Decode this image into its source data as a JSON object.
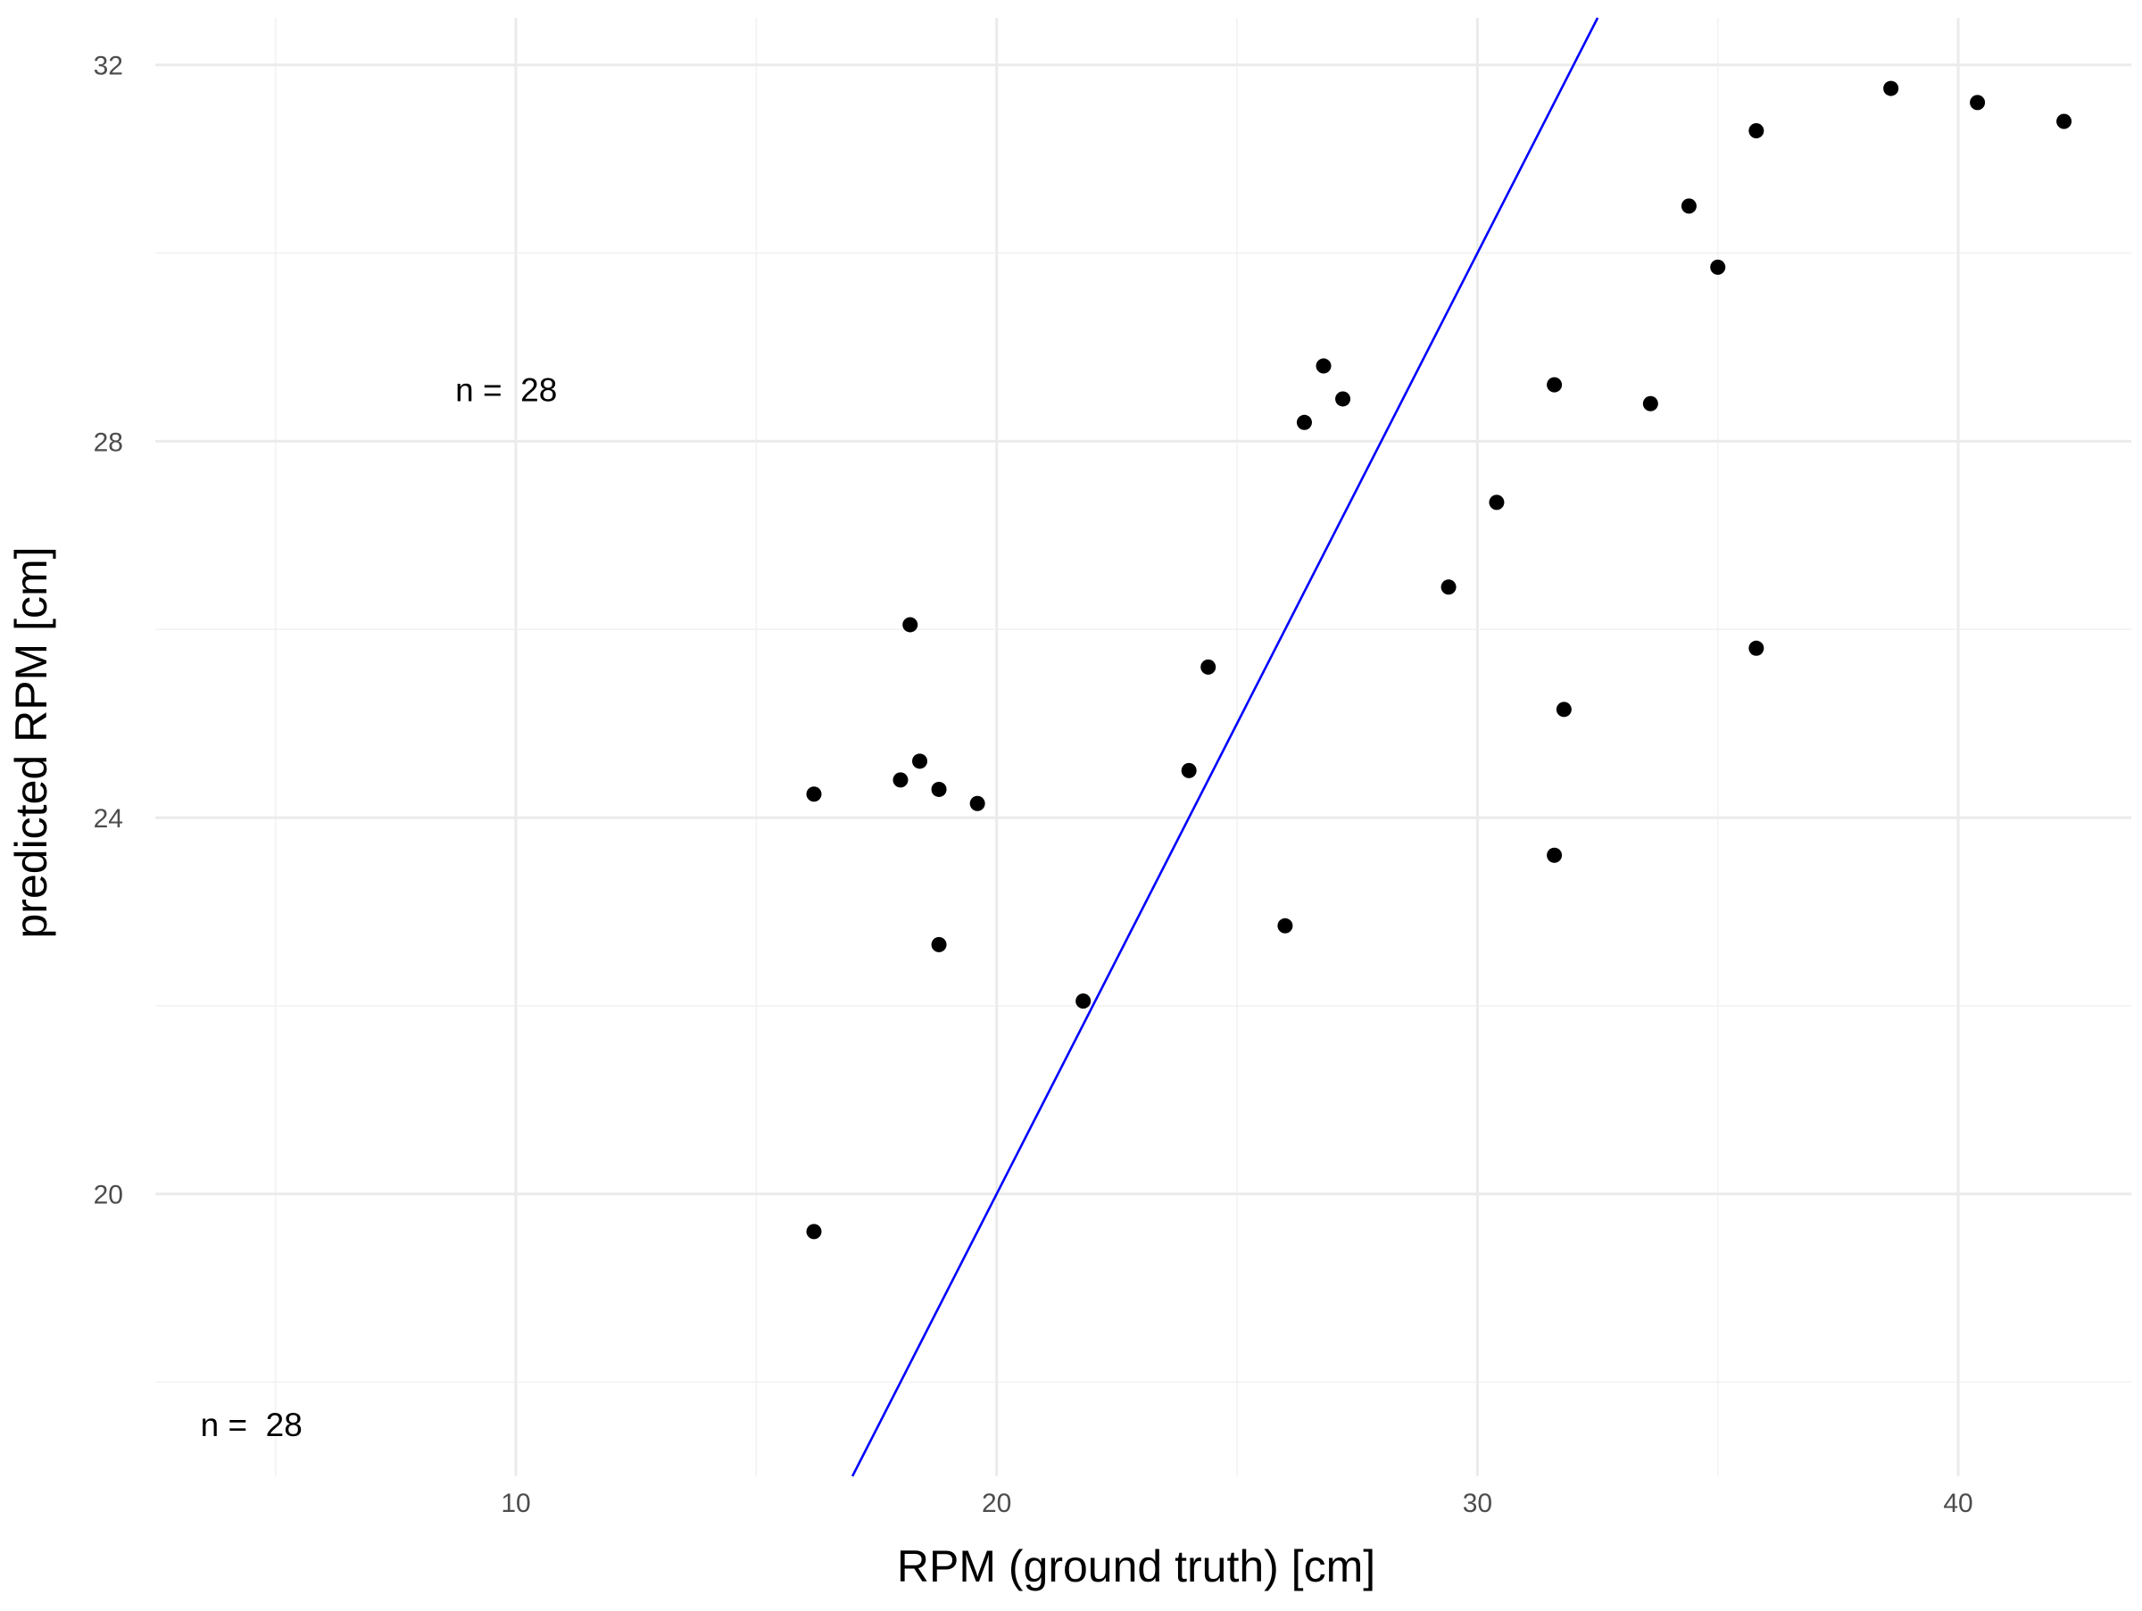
{
  "chart_data": {
    "type": "scatter",
    "title": "",
    "xlabel": "RPM (ground truth) [cm]",
    "ylabel": "predicted RPM [cm]",
    "xlim": [
      2.5,
      43.6
    ],
    "ylim": [
      17.0,
      32.5
    ],
    "x_ticks": [
      10,
      20,
      30,
      40
    ],
    "x_minor_ticks": [
      5,
      15,
      25,
      35
    ],
    "y_ticks": [
      20,
      24,
      28,
      32
    ],
    "y_minor_ticks": [
      18,
      22,
      26,
      30
    ],
    "grid": true,
    "reference_line": {
      "slope": 1,
      "intercept": 0,
      "color": "#0000ff"
    },
    "point_color": "#000000",
    "annotations": [
      {
        "text": "n =  28",
        "x": 9.8,
        "y": 28.55
      },
      {
        "text": "n =  28",
        "x": 4.5,
        "y": 17.55
      }
    ],
    "points": [
      {
        "x": 16.2,
        "y": 24.25
      },
      {
        "x": 16.2,
        "y": 19.6
      },
      {
        "x": 18.0,
        "y": 24.4
      },
      {
        "x": 18.2,
        "y": 26.05
      },
      {
        "x": 18.4,
        "y": 24.6
      },
      {
        "x": 18.8,
        "y": 24.3
      },
      {
        "x": 18.8,
        "y": 22.65
      },
      {
        "x": 19.6,
        "y": 24.15
      },
      {
        "x": 21.8,
        "y": 22.05
      },
      {
        "x": 24.0,
        "y": 24.5
      },
      {
        "x": 24.4,
        "y": 25.6
      },
      {
        "x": 26.0,
        "y": 22.85
      },
      {
        "x": 26.4,
        "y": 28.2
      },
      {
        "x": 26.8,
        "y": 28.8
      },
      {
        "x": 27.2,
        "y": 28.45
      },
      {
        "x": 29.4,
        "y": 26.45
      },
      {
        "x": 30.4,
        "y": 27.35
      },
      {
        "x": 31.6,
        "y": 28.6
      },
      {
        "x": 31.6,
        "y": 23.6
      },
      {
        "x": 31.8,
        "y": 25.15
      },
      {
        "x": 33.6,
        "y": 28.4
      },
      {
        "x": 34.4,
        "y": 30.5
      },
      {
        "x": 35.0,
        "y": 29.85
      },
      {
        "x": 35.8,
        "y": 31.3
      },
      {
        "x": 35.8,
        "y": 25.8
      },
      {
        "x": 38.6,
        "y": 31.75
      },
      {
        "x": 40.4,
        "y": 31.6
      },
      {
        "x": 42.2,
        "y": 31.4
      }
    ]
  }
}
